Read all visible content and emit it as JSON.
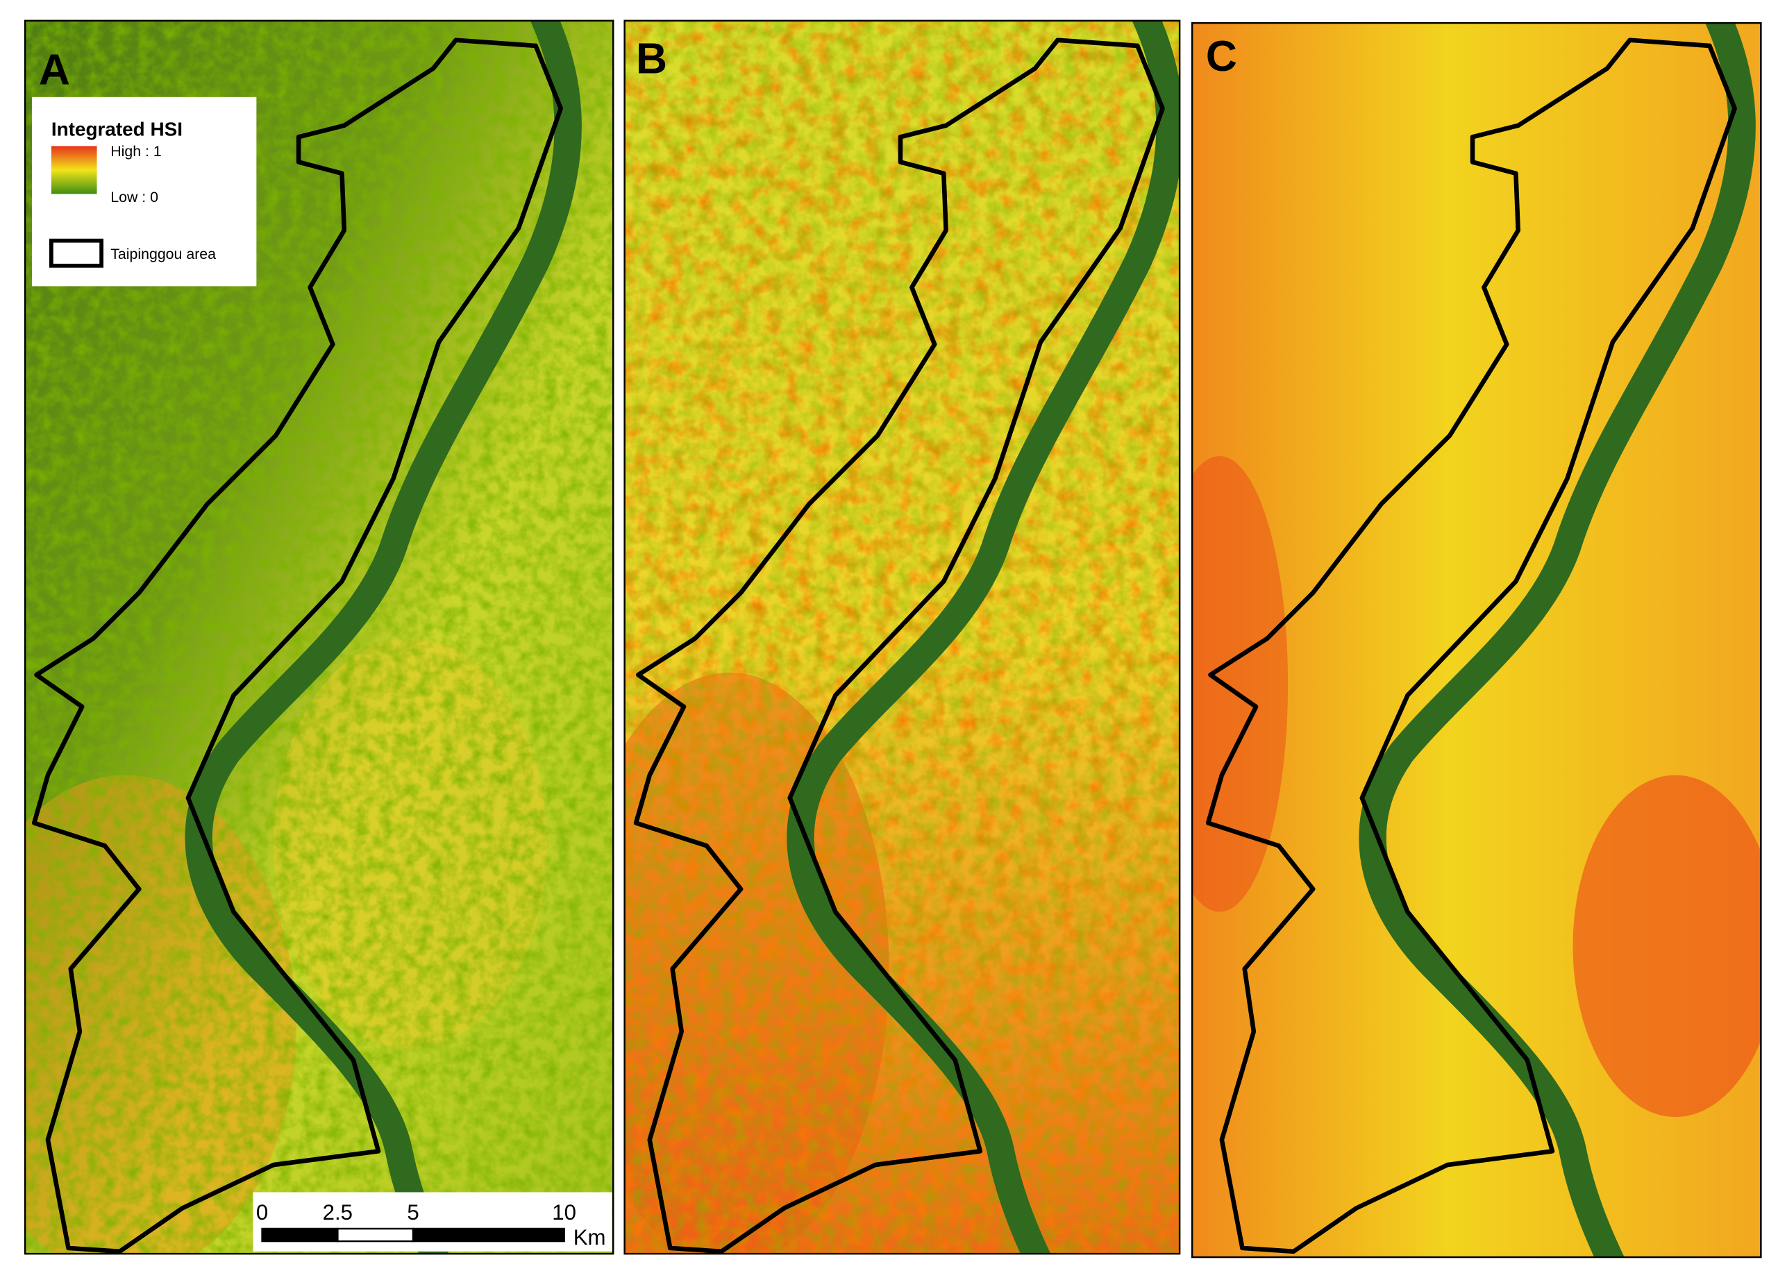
{
  "panels": [
    {
      "label": "A"
    },
    {
      "label": "B"
    },
    {
      "label": "C"
    }
  ],
  "legend": {
    "title": "Integrated HSI",
    "high": "High : 1",
    "low": "Low : 0",
    "boundary": "Taipinggou area"
  },
  "scale_bar": {
    "ticks": [
      0,
      2.5,
      5,
      10
    ],
    "unit": "Km"
  }
}
